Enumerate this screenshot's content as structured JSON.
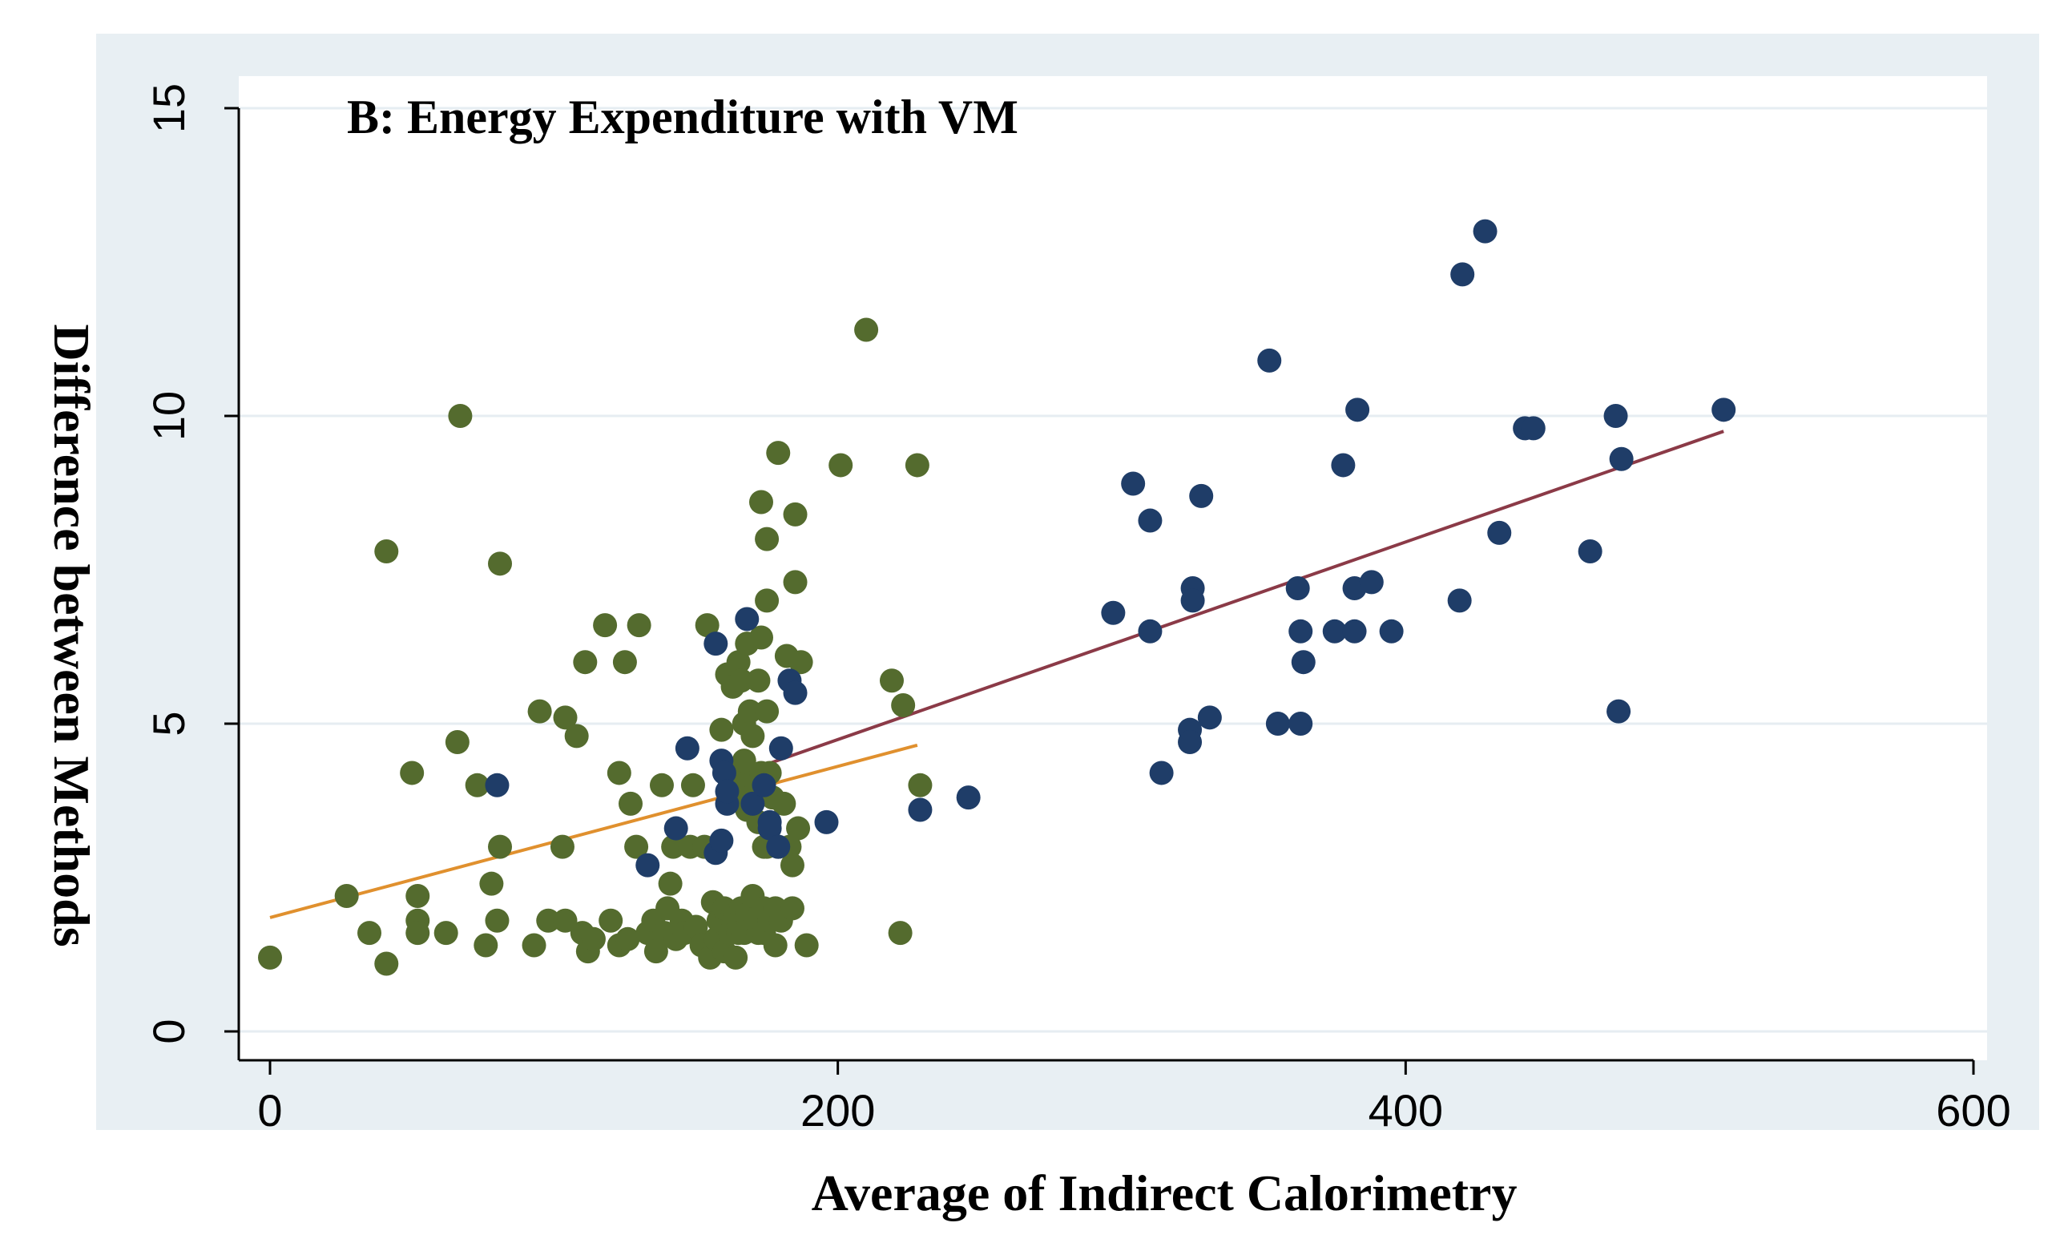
{
  "chart_data": {
    "type": "scatter",
    "title": "B: Energy Expenditure with VM",
    "xlabel": "Average of Indirect Calorimetry",
    "ylabel": "Difference between Methods",
    "xlim": [
      0,
      600
    ],
    "ylim": [
      0,
      15
    ],
    "xticks": [
      "0",
      "200",
      "400",
      "600"
    ],
    "yticks": [
      "0",
      "5",
      "10",
      "15"
    ],
    "grid": true,
    "series": [
      {
        "name": "green",
        "color": "#546b2e",
        "points": [
          [
            0,
            1.2
          ],
          [
            27,
            2.2
          ],
          [
            35,
            1.6
          ],
          [
            41,
            7.8
          ],
          [
            41,
            1.1
          ],
          [
            50,
            4.2
          ],
          [
            52,
            2.2
          ],
          [
            52,
            1.8
          ],
          [
            52,
            1.6
          ],
          [
            62,
            1.6
          ],
          [
            66,
            4.7
          ],
          [
            67,
            10.0
          ],
          [
            73,
            4.0
          ],
          [
            76,
            1.4
          ],
          [
            78,
            2.4
          ],
          [
            80,
            1.8
          ],
          [
            81,
            7.6
          ],
          [
            81,
            3.0
          ],
          [
            93,
            1.4
          ],
          [
            95,
            5.2
          ],
          [
            98,
            1.8
          ],
          [
            103,
            3.0
          ],
          [
            104,
            1.8
          ],
          [
            104,
            5.1
          ],
          [
            108,
            4.8
          ],
          [
            110,
            1.6
          ],
          [
            111,
            6.0
          ],
          [
            112,
            1.3
          ],
          [
            114,
            1.5
          ],
          [
            118,
            6.6
          ],
          [
            120,
            1.8
          ],
          [
            123,
            4.2
          ],
          [
            123,
            1.4
          ],
          [
            125,
            6.0
          ],
          [
            126,
            1.5
          ],
          [
            127,
            3.7
          ],
          [
            129,
            3.0
          ],
          [
            130,
            6.6
          ],
          [
            133,
            1.6
          ],
          [
            135,
            1.8
          ],
          [
            136,
            1.3
          ],
          [
            138,
            4.0
          ],
          [
            139,
            1.6
          ],
          [
            140,
            2.0
          ],
          [
            141,
            2.4
          ],
          [
            142,
            3.0
          ],
          [
            143,
            1.5
          ],
          [
            145,
            1.8
          ],
          [
            146,
            1.6
          ],
          [
            148,
            3.0
          ],
          [
            149,
            4.0
          ],
          [
            150,
            1.7
          ],
          [
            152,
            1.4
          ],
          [
            153,
            3.0
          ],
          [
            154,
            6.6
          ],
          [
            155,
            1.2
          ],
          [
            156,
            2.1
          ],
          [
            157,
            1.5
          ],
          [
            158,
            1.8
          ],
          [
            159,
            4.9
          ],
          [
            160,
            1.3
          ],
          [
            160,
            4.3
          ],
          [
            160,
            2.0
          ],
          [
            161,
            5.8
          ],
          [
            162,
            4.0
          ],
          [
            162,
            1.6
          ],
          [
            163,
            1.9
          ],
          [
            163,
            5.6
          ],
          [
            164,
            1.2
          ],
          [
            164,
            3.9
          ],
          [
            164,
            1.9
          ],
          [
            165,
            6.0
          ],
          [
            165,
            1.6
          ],
          [
            166,
            5.7
          ],
          [
            166,
            4.1
          ],
          [
            166,
            2.0
          ],
          [
            167,
            4.4
          ],
          [
            167,
            5.0
          ],
          [
            167,
            1.6
          ],
          [
            168,
            6.3
          ],
          [
            168,
            3.6
          ],
          [
            168,
            1.9
          ],
          [
            169,
            5.2
          ],
          [
            169,
            3.8
          ],
          [
            170,
            4.8
          ],
          [
            170,
            2.2
          ],
          [
            171,
            4.1
          ],
          [
            171,
            1.8
          ],
          [
            172,
            5.7
          ],
          [
            172,
            3.4
          ],
          [
            172,
            1.6
          ],
          [
            173,
            8.6
          ],
          [
            173,
            6.4
          ],
          [
            173,
            4.2
          ],
          [
            174,
            3.0
          ],
          [
            174,
            2.0
          ],
          [
            174,
            1.6
          ],
          [
            175,
            8.0
          ],
          [
            175,
            7.0
          ],
          [
            175,
            5.2
          ],
          [
            175,
            3.0
          ],
          [
            176,
            4.2
          ],
          [
            176,
            1.8
          ],
          [
            177,
            3.8
          ],
          [
            178,
            2.0
          ],
          [
            178,
            1.4
          ],
          [
            179,
            9.4
          ],
          [
            179,
            3.0
          ],
          [
            180,
            1.8
          ],
          [
            181,
            3.7
          ],
          [
            182,
            6.1
          ],
          [
            183,
            3.0
          ],
          [
            184,
            2.7
          ],
          [
            184,
            2.0
          ],
          [
            185,
            8.4
          ],
          [
            185,
            7.3
          ],
          [
            186,
            3.3
          ],
          [
            187,
            6.0
          ],
          [
            189,
            1.4
          ],
          [
            201,
            9.2
          ],
          [
            210,
            11.4
          ],
          [
            219,
            5.7
          ],
          [
            222,
            1.6
          ],
          [
            223,
            5.3
          ],
          [
            228,
            9.2
          ],
          [
            229,
            4.0
          ]
        ]
      },
      {
        "name": "navy",
        "color": "#1f3d68",
        "points": [
          [
            80,
            4.0
          ],
          [
            133,
            2.7
          ],
          [
            143,
            3.3
          ],
          [
            147,
            4.6
          ],
          [
            157,
            2.9
          ],
          [
            157,
            6.3
          ],
          [
            159,
            3.1
          ],
          [
            159,
            4.4
          ],
          [
            160,
            4.2
          ],
          [
            161,
            3.7
          ],
          [
            161,
            3.9
          ],
          [
            168,
            6.7
          ],
          [
            170,
            3.7
          ],
          [
            174,
            4.0
          ],
          [
            176,
            3.4
          ],
          [
            176,
            3.3
          ],
          [
            179,
            3.0
          ],
          [
            180,
            4.6
          ],
          [
            183,
            5.7
          ],
          [
            185,
            5.5
          ],
          [
            196,
            3.4
          ],
          [
            229,
            3.6
          ],
          [
            246,
            3.8
          ],
          [
            297,
            6.8
          ],
          [
            304,
            8.9
          ],
          [
            310,
            8.3
          ],
          [
            310,
            6.5
          ],
          [
            314,
            4.2
          ],
          [
            324,
            4.9
          ],
          [
            324,
            4.7
          ],
          [
            325,
            7.2
          ],
          [
            325,
            7.0
          ],
          [
            328,
            8.7
          ],
          [
            331,
            5.1
          ],
          [
            352,
            10.9
          ],
          [
            355,
            5.0
          ],
          [
            362,
            7.2
          ],
          [
            363,
            6.5
          ],
          [
            363,
            5.0
          ],
          [
            364,
            6.0
          ],
          [
            375,
            6.5
          ],
          [
            378,
            9.2
          ],
          [
            382,
            7.2
          ],
          [
            382,
            6.5
          ],
          [
            383,
            10.1
          ],
          [
            388,
            7.3
          ],
          [
            395,
            6.5
          ],
          [
            419,
            7.0
          ],
          [
            420,
            12.3
          ],
          [
            428,
            13.0
          ],
          [
            433,
            8.1
          ],
          [
            442,
            9.8
          ],
          [
            445,
            9.8
          ],
          [
            465,
            7.8
          ],
          [
            474,
            10.0
          ],
          [
            475,
            5.2
          ],
          [
            476,
            9.3
          ],
          [
            512,
            10.1
          ]
        ]
      }
    ],
    "fit_lines": [
      {
        "name": "fit-orange",
        "color": "#e0902e",
        "x": [
          0,
          228
        ],
        "y": [
          1.85,
          4.65
        ]
      },
      {
        "name": "fit-maroon",
        "color": "#8b3a47",
        "x": [
          160,
          512
        ],
        "y": [
          4.1,
          9.75
        ]
      }
    ]
  }
}
